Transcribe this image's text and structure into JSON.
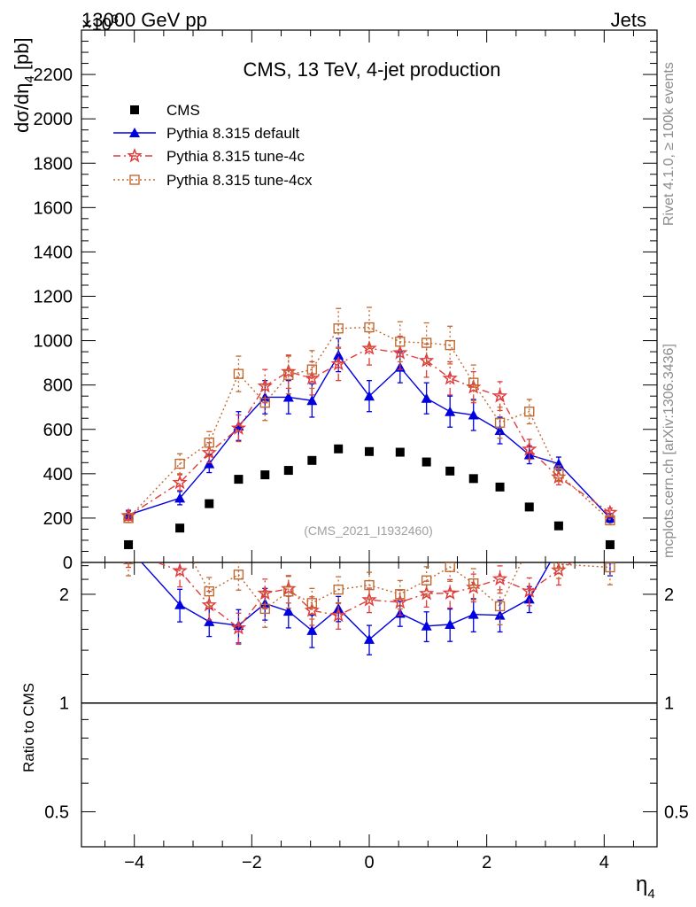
{
  "header": {
    "left": "13000 GeV pp",
    "right": "Jets",
    "exponent": "×10",
    "exponent_power": "3"
  },
  "side_labels": {
    "rivet": "Rivet 4.1.0, ≥ 100k events",
    "mcplots": "mcplots.cern.ch [arXiv:1306.3436]"
  },
  "chart_data": {
    "type": "scatter",
    "title": "CMS, 13 TeV, 4-jet production",
    "watermark": "(CMS_2021_I1932460)",
    "xlabel": "η",
    "xlabel_sub": "4",
    "ylabel": "dσ/dη",
    "ylabel_sub": "4",
    "ylabel_unit": " [pb]",
    "ratio_ylabel": "Ratio to CMS",
    "xlim": [
      -4.9,
      4.9
    ],
    "xticks": [
      -4,
      -2,
      0,
      2,
      4
    ],
    "xtick_labels": [
      "−4",
      "−2",
      "0",
      "2",
      "4"
    ],
    "main_ylim": [
      0,
      2400
    ],
    "main_yticks": [
      0,
      200,
      400,
      600,
      800,
      1000,
      1200,
      1400,
      1600,
      1800,
      2000,
      2200
    ],
    "main_ytick_labels": [
      "0",
      "200",
      "400",
      "600",
      "800",
      "1000",
      "1200",
      "1400",
      "1600",
      "1800",
      "2000",
      "2200"
    ],
    "ratio_ylim": [
      0.4,
      2.45
    ],
    "ratio_yticks": [
      0.5,
      1,
      2
    ],
    "ratio_ytick_labels": [
      "0.5",
      "1",
      "2"
    ],
    "x": [
      -4.1,
      -3.225,
      -2.725,
      -2.225,
      -1.775,
      -1.375,
      -0.975,
      -0.525,
      0,
      0.525,
      0.975,
      1.375,
      1.775,
      2.225,
      2.725,
      3.225,
      4.1
    ],
    "series": [
      {
        "name": "CMS",
        "marker": "square",
        "color": "#000000",
        "line": "none",
        "values": [
          80,
          155,
          265,
          375,
          395,
          415,
          460,
          512,
          500,
          497,
          453,
          412,
          378,
          340,
          250,
          165,
          80
        ]
      },
      {
        "name": "Pythia 8.315 default",
        "marker": "triangle",
        "color": "#0000e0",
        "line": "solid",
        "values": [
          215,
          290,
          445,
          615,
          745,
          745,
          730,
          935,
          750,
          880,
          740,
          680,
          665,
          595,
          485,
          445,
          200
        ],
        "errors": [
          20,
          30,
          40,
          65,
          75,
          75,
          75,
          75,
          70,
          70,
          70,
          70,
          70,
          60,
          40,
          30,
          20
        ]
      },
      {
        "name": "Pythia 8.315 tune-4c",
        "marker": "star",
        "color": "#e03c3c",
        "line": "dashdot",
        "values": [
          210,
          360,
          495,
          605,
          795,
          860,
          830,
          895,
          965,
          945,
          910,
          830,
          790,
          750,
          510,
          385,
          225
        ],
        "errors": [
          20,
          35,
          45,
          60,
          75,
          75,
          75,
          75,
          75,
          75,
          75,
          75,
          70,
          65,
          45,
          35,
          20
        ]
      },
      {
        "name": "Pythia 8.315 tune-4cx",
        "marker": "open-square",
        "color": "#c06a30",
        "line": "dotted",
        "values": [
          200,
          445,
          540,
          850,
          720,
          845,
          870,
          1055,
          1060,
          995,
          990,
          980,
          810,
          630,
          680,
          400,
          190
        ],
        "errors": [
          20,
          45,
          50,
          80,
          80,
          85,
          85,
          90,
          90,
          90,
          90,
          85,
          80,
          70,
          55,
          35,
          20
        ]
      }
    ]
  }
}
